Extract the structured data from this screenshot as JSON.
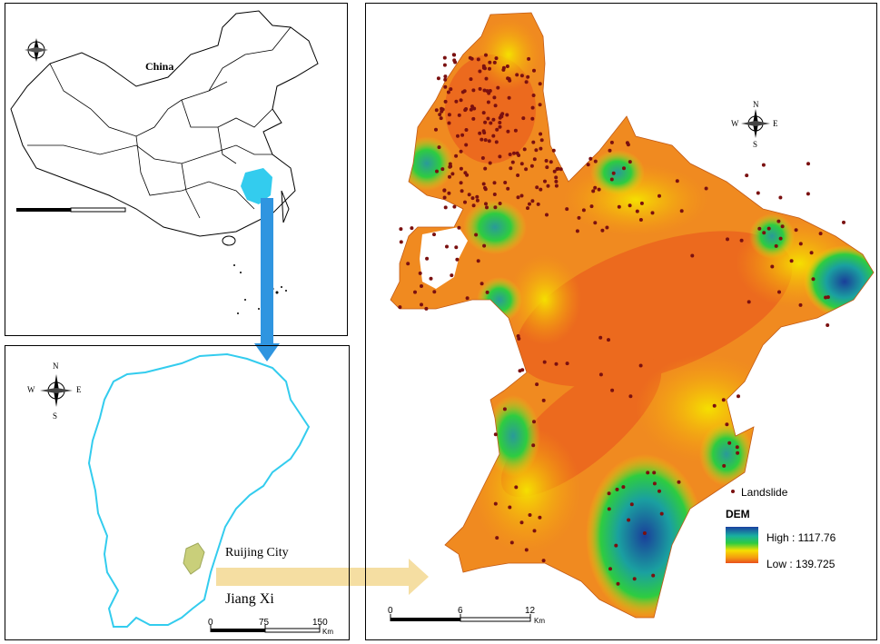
{
  "china_map": {
    "country_label": "China"
  },
  "jiangxi_map": {
    "city_label": "Ruijing City",
    "province_label": "Jiang Xi",
    "scale": {
      "ticks": [
        "0",
        "75",
        "150"
      ],
      "unit": "Km"
    },
    "compass": {
      "n": "N",
      "s": "S",
      "e": "E",
      "w": "W"
    }
  },
  "dem_map": {
    "compass": {
      "n": "N",
      "s": "S",
      "e": "E",
      "w": "W"
    },
    "scale": {
      "ticks": [
        "0",
        "6",
        "12"
      ],
      "unit": "Km"
    },
    "legend": {
      "point_label": "Landslide",
      "raster_title": "DEM",
      "high_label": "High : 1117.76",
      "low_label": "Low : 139.725"
    }
  },
  "colors": {
    "highlight_blue": "#33ccee",
    "arrow_blue": "#2f95e0",
    "jiangxi_outline": "#33ccee",
    "arrow_yellow": "#f5dea2",
    "dem_low": "#e8501e",
    "dem_mid": "#f5e000",
    "dem_high_green": "#2ecc40",
    "dem_highest": "#1a4a9a",
    "landslide": "#7a1010"
  }
}
